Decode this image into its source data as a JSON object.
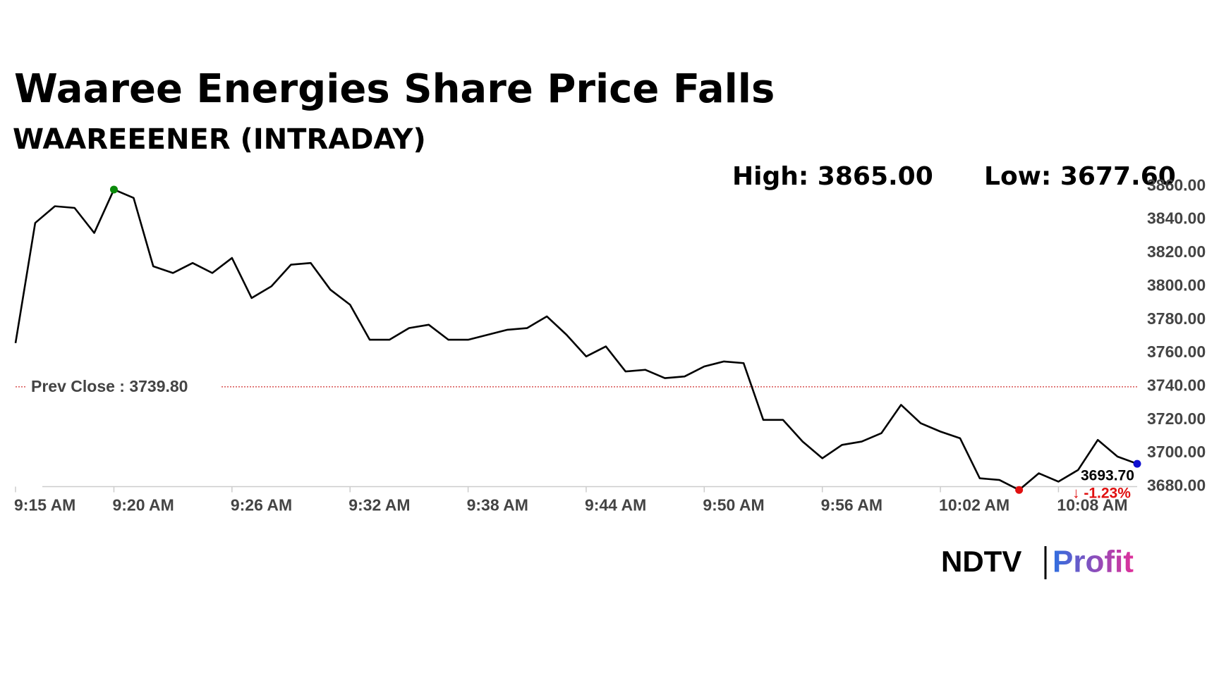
{
  "chart_data": {
    "type": "line",
    "title": "Waaree Energies Share Price Falls",
    "subtitle": "WAAREEENER (INTRADAY)",
    "high_label": "High: 3865.00",
    "low_label": "Low: 3677.60",
    "categories": [
      "9:15 AM",
      null,
      null,
      null,
      null,
      "9:20 AM",
      null,
      null,
      null,
      null,
      null,
      "9:26 AM",
      null,
      null,
      null,
      null,
      null,
      "9:32 AM",
      null,
      null,
      null,
      null,
      null,
      "9:38 AM",
      null,
      null,
      null,
      null,
      null,
      "9:44 AM",
      null,
      null,
      null,
      null,
      null,
      "9:50 AM",
      null,
      null,
      null,
      null,
      null,
      "9:56 AM",
      null,
      null,
      null,
      null,
      null,
      "10:02 AM",
      null,
      null,
      null,
      null,
      null,
      "10:08 AM",
      null,
      null,
      null,
      null
    ],
    "series": [
      {
        "name": "WAAREEENER",
        "color": "#000000",
        "values": [
          3766,
          3838,
          3848,
          3847,
          3832,
          3858,
          3853,
          3812,
          3808,
          3814,
          3808,
          3817,
          3793,
          3800,
          3813,
          3814,
          3798,
          3789,
          3768,
          3768,
          3775,
          3777,
          3768,
          3768,
          3771,
          3774,
          3775,
          3782,
          3771,
          3758,
          3764,
          3749,
          3750,
          3745,
          3746,
          3752,
          3755,
          3754,
          3720,
          3720,
          3707,
          3697,
          3705,
          3707,
          3712,
          3729,
          3718,
          3713,
          3709,
          3685,
          3684,
          3678,
          3688,
          3683,
          3690,
          3708,
          3698,
          3693.7
        ]
      }
    ],
    "markers": [
      {
        "index": 5,
        "color": "#0a8a0a"
      },
      {
        "index": 51,
        "color": "#e01010"
      },
      {
        "index": 57,
        "color": "#1010d0"
      }
    ],
    "prev_close": {
      "value": 3739.8,
      "label": "Prev Close : 3739.80",
      "color": "#d03030"
    },
    "last_label": {
      "value": 3693.7,
      "label": "3693.70"
    },
    "change_label": "↓ -1.23%",
    "ylim": [
      3676,
      3866
    ],
    "yticks": [
      {
        "value": 3680,
        "label": "3680.00"
      },
      {
        "value": 3700,
        "label": "3700.00"
      },
      {
        "value": 3720,
        "label": "3720.00"
      },
      {
        "value": 3740,
        "label": "3740.00"
      },
      {
        "value": 3760,
        "label": "3760.00"
      },
      {
        "value": 3780,
        "label": "3780.00"
      },
      {
        "value": 3800,
        "label": "3800.00"
      },
      {
        "value": 3820,
        "label": "3820.00"
      },
      {
        "value": 3840,
        "label": "3840.00"
      },
      {
        "value": 3860,
        "label": "3860.00"
      }
    ],
    "logo": {
      "left": "NDTV",
      "right": "Profit"
    }
  }
}
